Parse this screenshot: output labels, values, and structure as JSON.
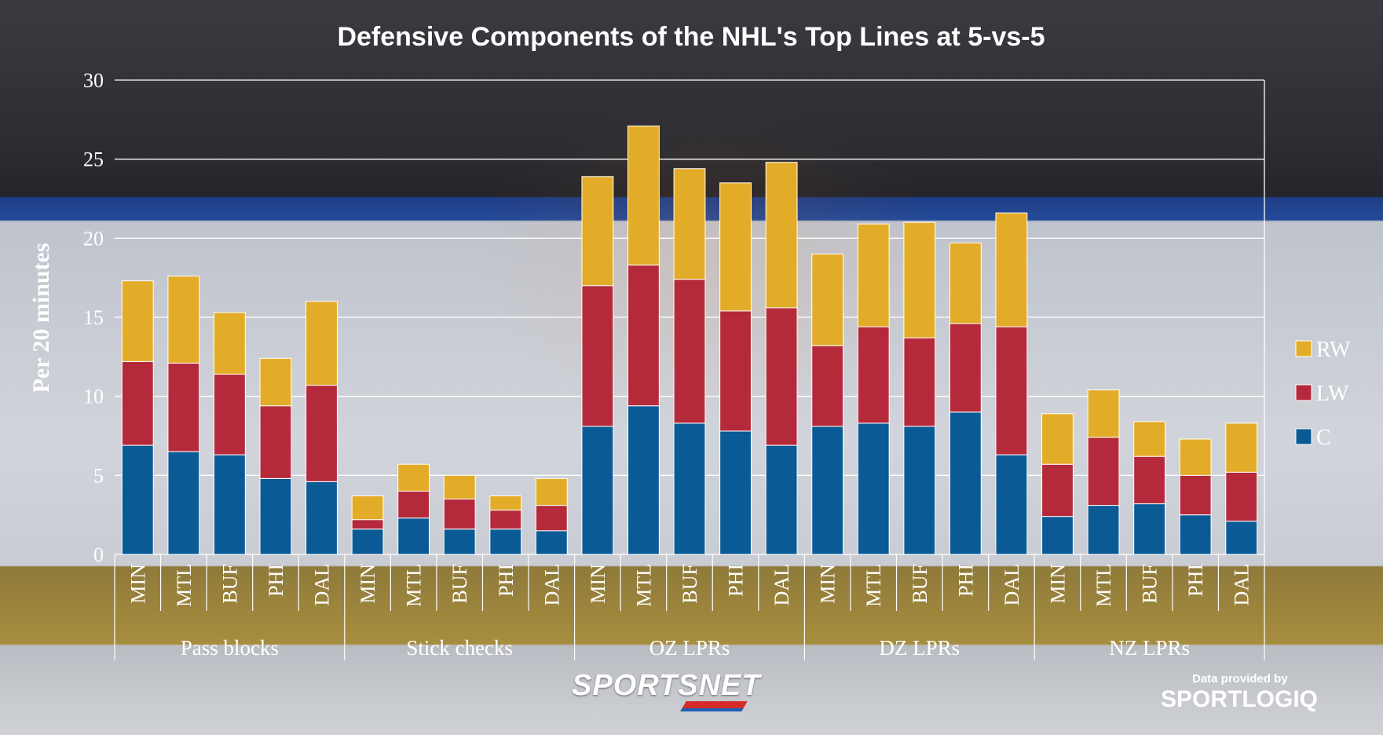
{
  "chart_data": {
    "type": "bar",
    "stacked": true,
    "title": "Defensive Components of the NHL's Top Lines at 5-vs-5",
    "ylabel": "Per 20 minutes",
    "xlabel": "",
    "ylim": [
      0,
      30
    ],
    "yticks": [
      0,
      5,
      10,
      15,
      20,
      25,
      30
    ],
    "grid": true,
    "legend_position": "right",
    "groups": [
      {
        "label": "Pass blocks",
        "teams": [
          "MIN",
          "MTL",
          "BUF",
          "PHI",
          "DAL"
        ]
      },
      {
        "label": "Stick checks",
        "teams": [
          "MIN",
          "MTL",
          "BUF",
          "PHI",
          "DAL"
        ]
      },
      {
        "label": "OZ LPRs",
        "teams": [
          "MIN",
          "MTL",
          "BUF",
          "PHI",
          "DAL"
        ]
      },
      {
        "label": "DZ LPRs",
        "teams": [
          "MIN",
          "MTL",
          "BUF",
          "PHI",
          "DAL"
        ]
      },
      {
        "label": "NZ LPRs",
        "teams": [
          "MIN",
          "MTL",
          "BUF",
          "PHI",
          "DAL"
        ]
      }
    ],
    "series": [
      {
        "name": "C",
        "color": "#0a5a96",
        "values": [
          6.9,
          6.5,
          6.3,
          4.8,
          4.6,
          1.6,
          2.3,
          1.6,
          1.6,
          1.5,
          8.1,
          9.4,
          8.3,
          7.8,
          6.9,
          8.1,
          8.3,
          8.1,
          9.0,
          6.3,
          2.4,
          3.1,
          3.2,
          2.5,
          2.1
        ]
      },
      {
        "name": "LW",
        "color": "#b52a3a",
        "values": [
          5.3,
          5.6,
          5.1,
          4.6,
          6.1,
          0.6,
          1.7,
          1.9,
          1.2,
          1.6,
          8.9,
          8.9,
          9.1,
          7.6,
          8.7,
          5.1,
          6.1,
          5.6,
          5.6,
          8.1,
          3.3,
          4.3,
          3.0,
          2.5,
          3.1
        ]
      },
      {
        "name": "RW",
        "color": "#e3ac28",
        "values": [
          5.1,
          5.5,
          3.9,
          3.0,
          5.3,
          1.5,
          1.7,
          1.5,
          0.9,
          1.7,
          6.9,
          8.8,
          7.0,
          8.1,
          9.2,
          5.8,
          6.5,
          7.3,
          5.1,
          7.2,
          3.2,
          3.0,
          2.2,
          2.3,
          3.1
        ]
      }
    ],
    "legend_order": [
      "RW",
      "LW",
      "C"
    ]
  },
  "branding": {
    "sportsnet": "SPORTSNET",
    "credit_line": "Data provided by",
    "sportlogiq": "SPORTLOGIQ"
  }
}
